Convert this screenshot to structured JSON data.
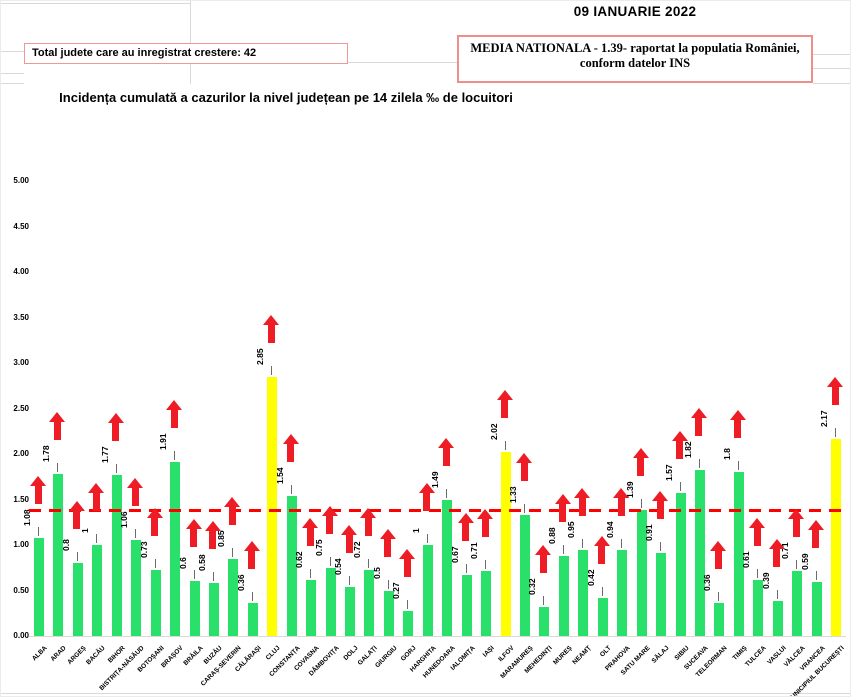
{
  "header": {
    "date_title": "09 IANUARIE 2022",
    "growth_box_text": "Total judete care au inregistrat crestere: 42",
    "media_box_line1": "MEDIA NATIONALA  - 1.39-  raportat la populatia României,",
    "media_box_line2": "conform datelor INS"
  },
  "chart_data": {
    "type": "bar",
    "title": "Incidența cumulată a cazurilor la nivel județean pe 14 zilela ‰ de locuitori",
    "xlabel": "",
    "ylabel": "",
    "ylim": [
      0,
      5
    ],
    "ytick_step": 0.5,
    "yticks": [
      "5.00",
      "4.50",
      "4.00",
      "3.50",
      "3.00",
      "2.50",
      "2.00",
      "1.50",
      "1.00",
      "0.50",
      "0.00"
    ],
    "grid": false,
    "legend": null,
    "categories": [
      "ALBA",
      "ARAD",
      "ARGEȘ",
      "BACĂU",
      "BIHOR",
      "BISTRIȚA-NĂSĂUD",
      "BOTOȘANI",
      "BRAȘOV",
      "BRĂILA",
      "BUZĂU",
      "CARAȘ-SEVERIN",
      "CĂLĂRAȘI",
      "CLUJ",
      "CONSTANȚA",
      "COVASNA",
      "DÂMBOVIȚA",
      "DOLJ",
      "GALAȚI",
      "GIURGIU",
      "GORJ",
      "HARGHITA",
      "HUNEDOARA",
      "IALOMIȚA",
      "IAȘI",
      "ILFOV",
      "MARAMUREȘ",
      "MEHEDINȚI",
      "MUREȘ",
      "NEAMȚ",
      "OLT",
      "PRAHOVA",
      "SATU MARE",
      "SĂLAJ",
      "SIBIU",
      "SUCEAVA",
      "TELEORMAN",
      "TIMIȘ",
      "TULCEA",
      "VASLUI",
      "VÂLCEA",
      "VRANCEA",
      "MUNICIPIUL BUCUREȘTI"
    ],
    "values": [
      1.08,
      1.78,
      0.8,
      1,
      1.77,
      1.06,
      0.73,
      1.91,
      0.6,
      0.58,
      0.85,
      0.36,
      2.85,
      1.54,
      0.62,
      0.75,
      0.54,
      0.72,
      0.5,
      0.27,
      1,
      1.49,
      0.67,
      0.71,
      2.02,
      1.33,
      0.32,
      0.88,
      0.95,
      0.42,
      0.94,
      1.39,
      0.91,
      1.57,
      1.82,
      0.36,
      1.8,
      0.61,
      0.39,
      0.71,
      0.59,
      2.17
    ],
    "value_labels": [
      "1.08",
      "1.78",
      "0.8",
      "1",
      "1.77",
      "1.06",
      "0.73",
      "1.91",
      "0.6",
      "0.58",
      "0.85",
      "0.36",
      "2.85",
      "1.54",
      "0.62",
      "0.75",
      "0.54",
      "0.72",
      "0.5",
      "0.27",
      "1",
      "1.49",
      "0.67",
      "0.71",
      "2.02",
      "1.33",
      "0.32",
      "0.88",
      "0.95",
      "0.42",
      "0.94",
      "1.39",
      "0.91",
      "1.57",
      "1.82",
      "0.36",
      "1.8",
      "0.61",
      "0.39",
      "0.71",
      "0.59",
      "2.17"
    ],
    "highlight_indices": [
      12,
      24,
      41
    ],
    "highlighted_counties": [
      "CLUJ",
      "ILFOV",
      "MUNICIPIUL BUCUREȘTI"
    ],
    "national_average": 1.39,
    "average_line": {
      "value": 1.39,
      "style": "dashed",
      "color": "#FE0000"
    },
    "trend_arrow": "up",
    "colors": {
      "bar_green": "#29e16a",
      "bar_highlight_yellow": "#ffff00",
      "arrow_red": "#ee1c25",
      "avg_line_red": "#fe0000",
      "box_border_pink": "#f19795",
      "gridline_gray": "#d9d9d9"
    }
  }
}
